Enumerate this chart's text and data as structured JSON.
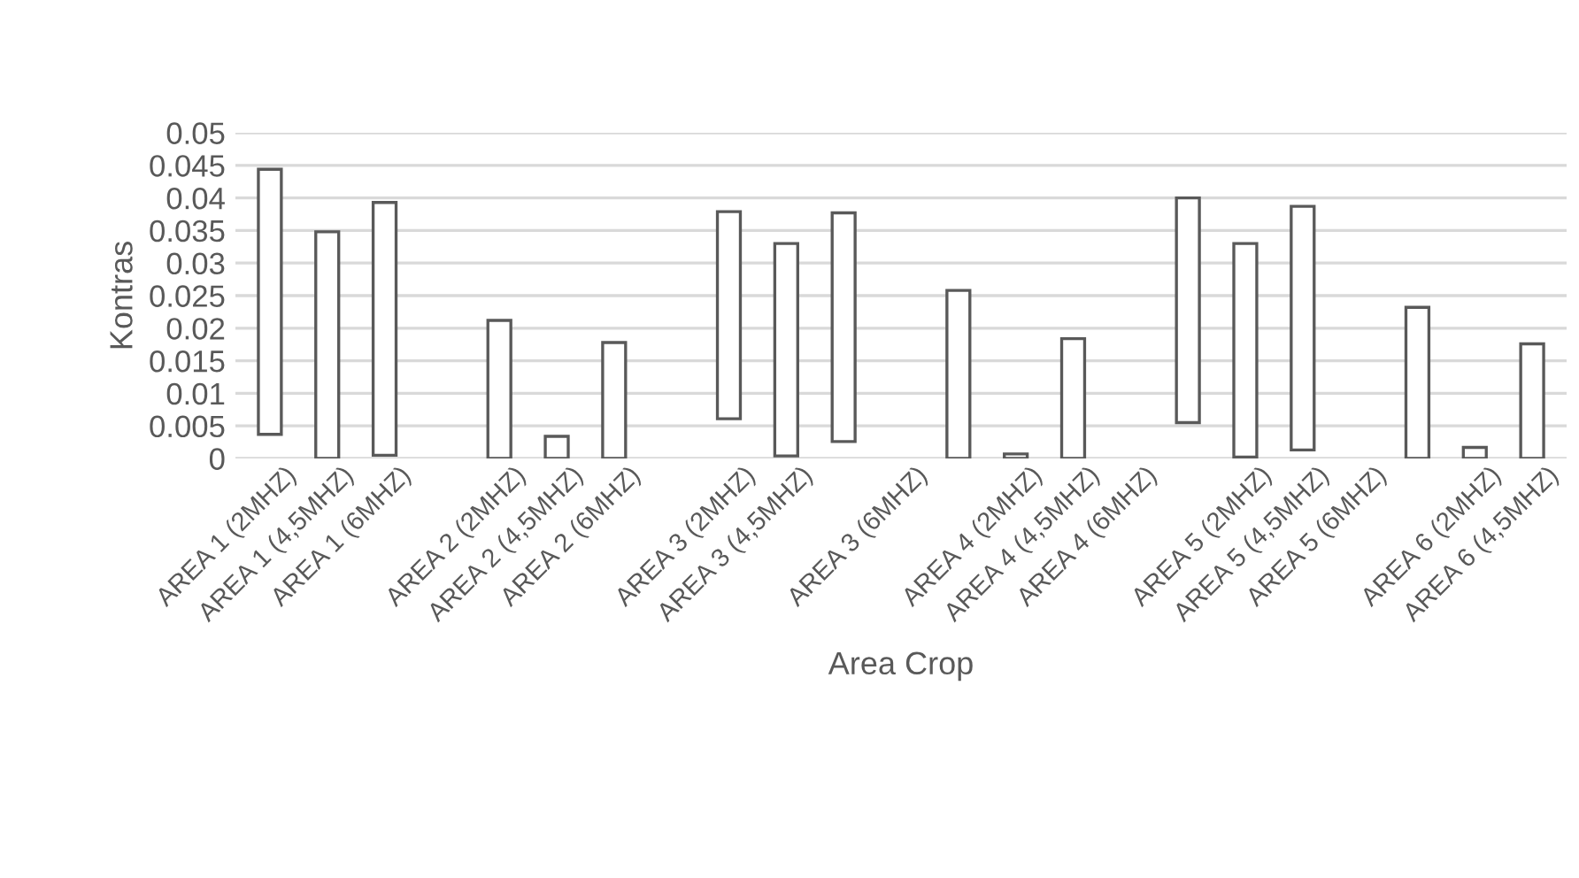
{
  "chart_data": {
    "type": "bar",
    "xlabel": "Area Crop",
    "ylabel": "Kontras",
    "categories": [
      "AREA 1 (2MHZ)",
      "AREA 1 (4,5MHZ)",
      "AREA 1 (6MHZ)",
      null,
      "AREA 2 (2MHZ)",
      "AREA 2 (4,5MHZ)",
      "AREA 2 (6MHZ)",
      null,
      "AREA 3 (2MHZ)",
      "AREA 3 (4,5MHZ)",
      null,
      "AREA 3 (6MHZ)",
      null,
      "AREA 4 (2MHZ)",
      "AREA 4 (4,5MHZ)",
      "AREA 4 (6MHZ)",
      null,
      "AREA 5 (2MHZ)",
      "AREA 5 (4,5MHZ)",
      "AREA 5 (6MHZ)",
      null,
      "AREA 6 (2MHZ)",
      "AREA 6 (4,5MHZ)"
    ],
    "base": [
      0.0037,
      0,
      0.0005,
      null,
      0,
      0,
      0,
      null,
      0.0061,
      0.0004,
      0.0026,
      null,
      0,
      0,
      0,
      null,
      0.0055,
      0.0002,
      0.0013,
      null,
      0,
      0,
      0
    ],
    "values": [
      0.0407,
      0.0348,
      0.0388,
      null,
      0.0212,
      0.0034,
      0.0178,
      null,
      0.0318,
      0.0326,
      0.0351,
      null,
      0.0258,
      0.0007,
      0.0184,
      null,
      0.0345,
      0.0328,
      0.0374,
      null,
      0.0232,
      0.0017,
      0.0176
    ],
    "color": "#ffffff",
    "ylim": [
      0,
      0.05
    ],
    "yticks": [
      0,
      0.005,
      0.01,
      0.015,
      0.02,
      0.025,
      0.03,
      0.035,
      0.04,
      0.045,
      0.05
    ],
    "grid": "y"
  }
}
